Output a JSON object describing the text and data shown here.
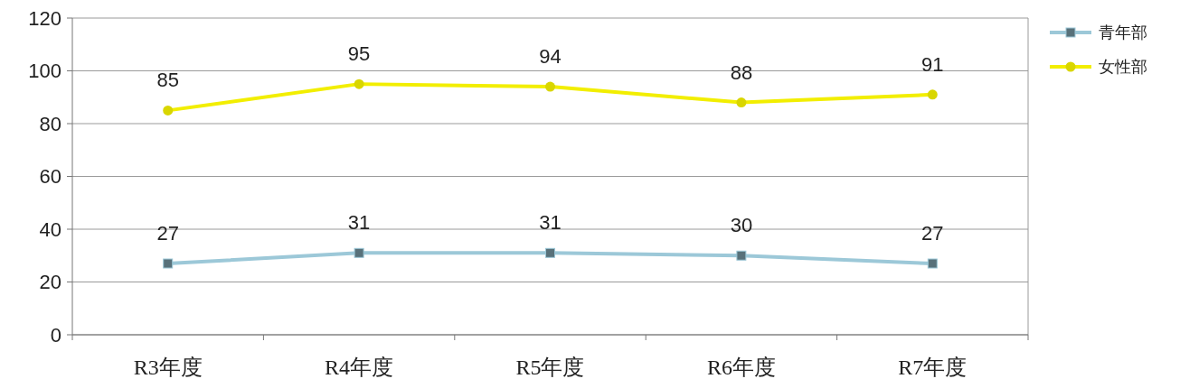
{
  "chart_data": {
    "type": "line",
    "categories": [
      "R3年度",
      "R4年度",
      "R5年度",
      "R6年度",
      "R7年度"
    ],
    "series": [
      {
        "name": "青年部",
        "color": "#9cc8d8",
        "marker": "square",
        "values": [
          27,
          31,
          31,
          30,
          27
        ]
      },
      {
        "name": "女性部",
        "color": "#f2ee00",
        "marker": "circle",
        "values": [
          85,
          95,
          94,
          88,
          91
        ]
      }
    ],
    "ylim": [
      0,
      120
    ],
    "yticks": [
      0,
      20,
      40,
      60,
      80,
      100,
      120
    ],
    "grid": "y",
    "legend": "top right",
    "data_labels": true
  }
}
